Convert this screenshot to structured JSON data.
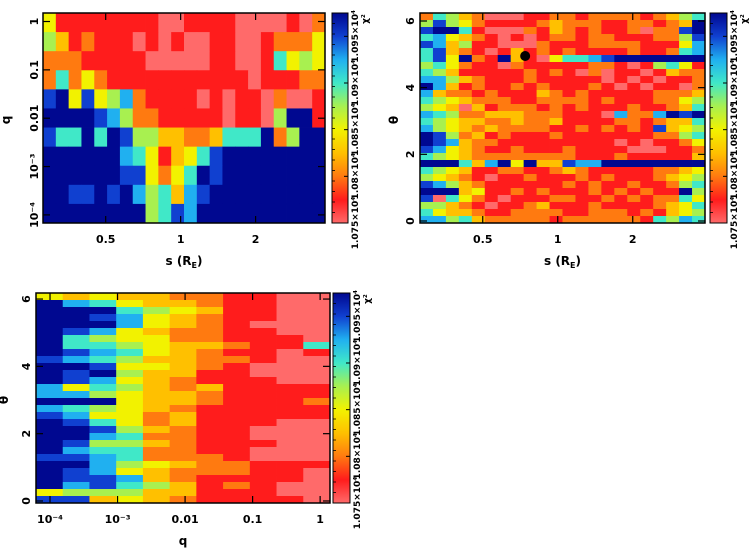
{
  "colors": {
    "levels": [
      "#ff6a6a",
      "#ff1c1c",
      "#ff7a10",
      "#ffc000",
      "#f2f200",
      "#a8f050",
      "#40e8c8",
      "#20b0f0",
      "#1040d0",
      "#000890"
    ],
    "marker": "#000000"
  },
  "colorbar": {
    "label": "χ²",
    "ticks": [
      "1.075×10⁴",
      "1.08×10⁴",
      "1.085×10⁴",
      "1.09×10⁴",
      "1.095×10⁴"
    ],
    "range": [
      10750,
      10975
    ]
  },
  "chart_data": [
    {
      "type": "heatmap",
      "xlabel": "s (R_E)",
      "xlabel_display": "s (R",
      "xlabel_sub": "E",
      "xlabel_close": ")",
      "ylabel": "q",
      "xscale": "log",
      "yscale": "log",
      "xlim": [
        0.28,
        3.8
      ],
      "ylim": [
        6.8e-05,
        1.5
      ],
      "xticks": [
        {
          "v": 0.5,
          "label": "0.5"
        },
        {
          "v": 1,
          "label": "1"
        },
        {
          "v": 2,
          "label": "2"
        }
      ],
      "yticks": [
        {
          "v": 1,
          "label": "1"
        },
        {
          "v": 0.1,
          "label": "0.1"
        },
        {
          "v": 0.01,
          "label": "0.01"
        },
        {
          "v": 0.001,
          "label": "10⁻³"
        },
        {
          "v": 0.0001,
          "label": "10⁻⁴"
        }
      ],
      "z_encoding": "digit level 0 (lowest χ², 1.075×10⁴) to 9 (highest χ², ≥1.095×10⁴); rows top to bottom",
      "z": [
        "4111111110011110000102",
        "5312111010100110012224",
        "2221111100000110016454",
        "2624211111111111011122",
        "8948457211110101102001",
        "9999875221111101105991",
        "8669698553322366692599",
        "9999997641346899999999",
        "9999998842469899999999",
        "9988989756378999999999",
        "9999999956879999999999"
      ]
    },
    {
      "type": "heatmap",
      "xlabel": "s (R_E)",
      "xlabel_display": "s (R",
      "xlabel_sub": "E",
      "xlabel_close": ")",
      "ylabel": "θ",
      "xscale": "log",
      "yscale": "linear",
      "xlim": [
        0.28,
        3.9
      ],
      "ylim": [
        -0.06,
        6.24
      ],
      "xticks": [
        {
          "v": 0.5,
          "label": "0.5"
        },
        {
          "v": 1,
          "label": "1"
        },
        {
          "v": 2,
          "label": "2"
        }
      ],
      "yticks": [
        {
          "v": 0,
          "label": "0"
        },
        {
          "v": 2,
          "label": "2"
        },
        {
          "v": 4,
          "label": "4"
        },
        {
          "v": 6,
          "label": "6"
        }
      ],
      "best_fit_marker": {
        "s": 0.74,
        "theta": 4.95
      },
      "z_encoding": "digit level 0 (lowest χ²) to 9 (highest χ²); rows top to bottom",
      "z": [
        "2653200011221222212356",
        "5854211112322211221239",
        "8996100021321211202289",
        "6743210101221221112258",
        "8735110002111222211147",
        "6832101312121111211267",
        "6849219310466789999999",
        "5642110211111221015641",
        "6531111121210201101322",
        "7753211121111101010112",
        "9731211212111210101102",
        "7322121113212111112223",
        "6543222112222121112245",
        "5430312221212111211236",
        "7652233322211107227989",
        "6543322322311112212336",
        "7543232222112121218345",
        "9852312111211111112256",
        "9873221111111110101124",
        "8743211211121111000112",
        "6543222222221112111113",
        "9996379493387799999999",
        "6543112211232111112234",
        "5432101121112121112345",
        "8753211111121211211256",
        "9993411212111212121195",
        "8064210111221121212264",
        "5532101123111211112346",
        "6433211222211222121345",
        "7756322222122222216576"
      ]
    },
    {
      "type": "heatmap",
      "xlabel": "q",
      "xlabel_display": "q",
      "xlabel_sub": "",
      "xlabel_close": "",
      "ylabel": "θ",
      "xscale": "log",
      "yscale": "linear",
      "xlim": [
        6.2e-05,
        1.4
      ],
      "ylim": [
        -0.06,
        6.18
      ],
      "xticks": [
        {
          "v": 0.0001,
          "label": "10⁻⁴"
        },
        {
          "v": 0.001,
          "label": "10⁻³"
        },
        {
          "v": 0.01,
          "label": "0.01"
        },
        {
          "v": 0.1,
          "label": "0.1"
        },
        {
          "v": 1,
          "label": "1"
        }
      ],
      "yticks": [
        {
          "v": 0,
          "label": "0"
        },
        {
          "v": 2,
          "label": "2"
        },
        {
          "v": 4,
          "label": "4"
        },
        {
          "v": 6,
          "label": "6"
        }
      ],
      "z_encoding": "digit level 0 (lowest χ²) to 9 (highest χ²); rows top to bottom",
      "z": [
        "43433221100",
        "97643321100",
        "99965431100",
        "99874321100",
        "99974321000",
        "98743221100",
        "96544221110",
        "96654332116",
        "98764321101",
        "87653322100",
        "99844321000",
        "98953311000",
        "98743211100",
        "74653231111",
        "77543321111",
        "99943321112",
        "76543211111",
        "87442311111",
        "98642311100",
        "99853211000",
        "99762211000",
        "98553211100",
        "97662211000",
        "88762221000",
        "99754322111",
        "98743222110",
        "98873211110",
        "97865312100",
        "45553311100",
        "88343211110"
      ]
    }
  ]
}
